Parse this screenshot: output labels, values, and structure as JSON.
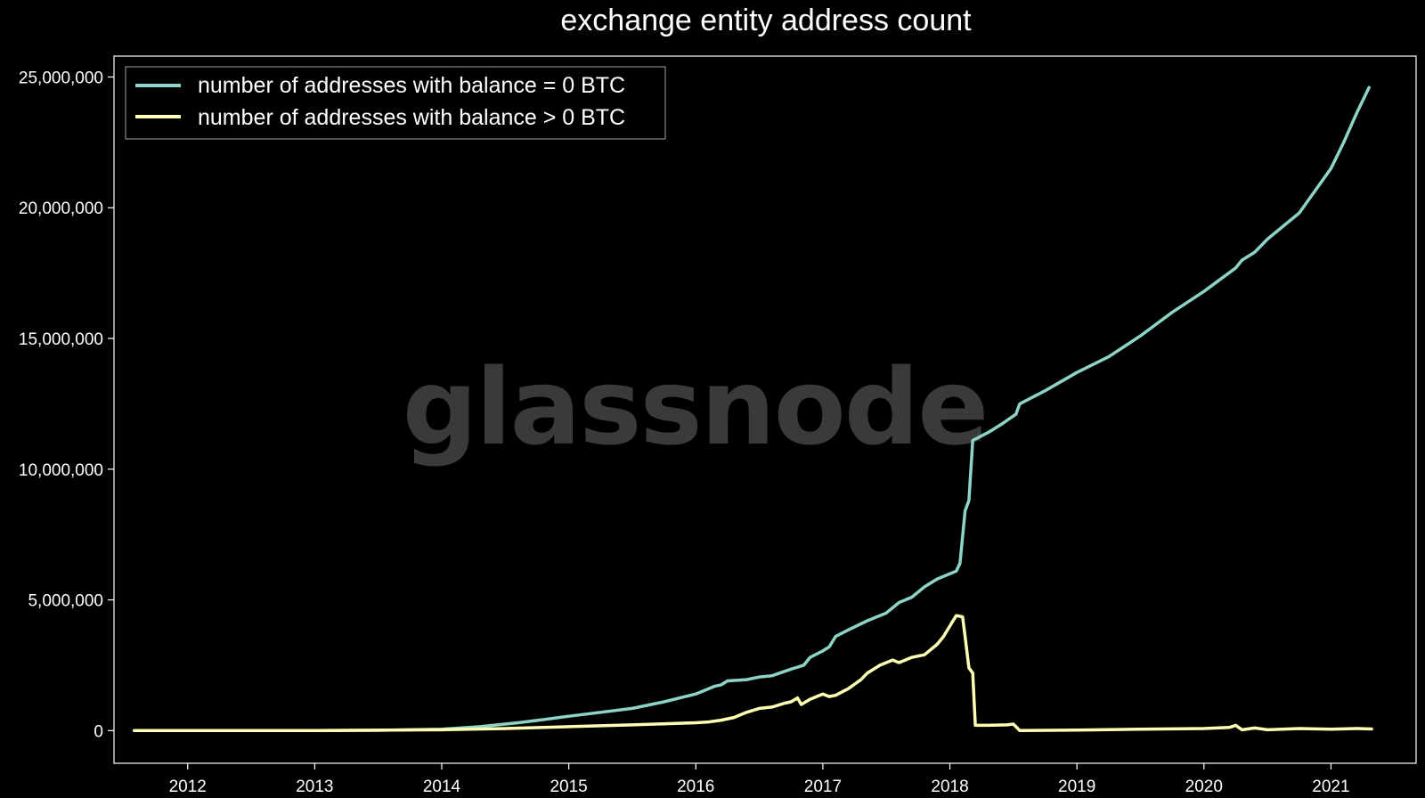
{
  "chart_data": {
    "type": "line",
    "title": "exchange entity address count",
    "xlabel": "",
    "ylabel": "",
    "xlim": [
      2011.42,
      2021.67
    ],
    "ylim": [
      -1250000,
      25800000
    ],
    "y_ticks": [
      {
        "value": 0,
        "label": "0"
      },
      {
        "value": 5000000,
        "label": "5,000,000"
      },
      {
        "value": 10000000,
        "label": "10,000,000"
      },
      {
        "value": 15000000,
        "label": "15,000,000"
      },
      {
        "value": 20000000,
        "label": "20,000,000"
      },
      {
        "value": 25000000,
        "label": "25,000,000"
      }
    ],
    "x_ticks": [
      {
        "value": 2012,
        "label": "2012"
      },
      {
        "value": 2013,
        "label": "2013"
      },
      {
        "value": 2014,
        "label": "2014"
      },
      {
        "value": 2015,
        "label": "2015"
      },
      {
        "value": 2016,
        "label": "2016"
      },
      {
        "value": 2017,
        "label": "2017"
      },
      {
        "value": 2018,
        "label": "2018"
      },
      {
        "value": 2019,
        "label": "2019"
      },
      {
        "value": 2020,
        "label": "2020"
      },
      {
        "value": 2021,
        "label": "2021"
      }
    ],
    "grid": false,
    "legend_position": "top-left",
    "background": "#000000",
    "series": [
      {
        "name": "number of addresses with balance = 0 BTC",
        "color": "#8dd3c7",
        "points": [
          [
            2011.58,
            0
          ],
          [
            2012.0,
            0
          ],
          [
            2013.0,
            0
          ],
          [
            2013.5,
            10000
          ],
          [
            2014.0,
            50000
          ],
          [
            2014.3,
            150000
          ],
          [
            2014.6,
            300000
          ],
          [
            2014.8,
            420000
          ],
          [
            2015.0,
            550000
          ],
          [
            2015.25,
            700000
          ],
          [
            2015.5,
            850000
          ],
          [
            2015.75,
            1100000
          ],
          [
            2016.0,
            1400000
          ],
          [
            2016.15,
            1700000
          ],
          [
            2016.2,
            1750000
          ],
          [
            2016.25,
            1900000
          ],
          [
            2016.4,
            1950000
          ],
          [
            2016.5,
            2050000
          ],
          [
            2016.6,
            2100000
          ],
          [
            2016.75,
            2350000
          ],
          [
            2016.85,
            2500000
          ],
          [
            2016.9,
            2800000
          ],
          [
            2017.0,
            3050000
          ],
          [
            2017.05,
            3200000
          ],
          [
            2017.1,
            3600000
          ],
          [
            2017.2,
            3850000
          ],
          [
            2017.35,
            4200000
          ],
          [
            2017.5,
            4500000
          ],
          [
            2017.6,
            4900000
          ],
          [
            2017.7,
            5100000
          ],
          [
            2017.8,
            5500000
          ],
          [
            2017.9,
            5800000
          ],
          [
            2018.0,
            6000000
          ],
          [
            2018.05,
            6100000
          ],
          [
            2018.08,
            6400000
          ],
          [
            2018.12,
            8400000
          ],
          [
            2018.15,
            8800000
          ],
          [
            2018.18,
            11100000
          ],
          [
            2018.3,
            11400000
          ],
          [
            2018.4,
            11700000
          ],
          [
            2018.52,
            12100000
          ],
          [
            2018.55,
            12500000
          ],
          [
            2018.75,
            13000000
          ],
          [
            2019.0,
            13700000
          ],
          [
            2019.25,
            14300000
          ],
          [
            2019.5,
            15100000
          ],
          [
            2019.75,
            16000000
          ],
          [
            2020.0,
            16800000
          ],
          [
            2020.25,
            17700000
          ],
          [
            2020.3,
            18000000
          ],
          [
            2020.4,
            18300000
          ],
          [
            2020.5,
            18800000
          ],
          [
            2020.75,
            19800000
          ],
          [
            2021.0,
            21500000
          ],
          [
            2021.1,
            22500000
          ],
          [
            2021.2,
            23600000
          ],
          [
            2021.3,
            24600000
          ]
        ]
      },
      {
        "name": "number of addresses with balance > 0 BTC",
        "color": "#ffffb3",
        "points": [
          [
            2011.58,
            0
          ],
          [
            2012.0,
            0
          ],
          [
            2013.0,
            0
          ],
          [
            2014.0,
            30000
          ],
          [
            2014.5,
            80000
          ],
          [
            2015.0,
            150000
          ],
          [
            2015.5,
            220000
          ],
          [
            2016.0,
            300000
          ],
          [
            2016.1,
            330000
          ],
          [
            2016.2,
            400000
          ],
          [
            2016.3,
            500000
          ],
          [
            2016.4,
            700000
          ],
          [
            2016.5,
            850000
          ],
          [
            2016.6,
            900000
          ],
          [
            2016.7,
            1050000
          ],
          [
            2016.75,
            1100000
          ],
          [
            2016.8,
            1250000
          ],
          [
            2016.83,
            1000000
          ],
          [
            2016.9,
            1200000
          ],
          [
            2017.0,
            1400000
          ],
          [
            2017.05,
            1300000
          ],
          [
            2017.1,
            1350000
          ],
          [
            2017.2,
            1600000
          ],
          [
            2017.3,
            1950000
          ],
          [
            2017.35,
            2200000
          ],
          [
            2017.45,
            2500000
          ],
          [
            2017.55,
            2700000
          ],
          [
            2017.6,
            2600000
          ],
          [
            2017.7,
            2800000
          ],
          [
            2017.8,
            2900000
          ],
          [
            2017.9,
            3300000
          ],
          [
            2017.95,
            3600000
          ],
          [
            2018.0,
            4000000
          ],
          [
            2018.05,
            4400000
          ],
          [
            2018.1,
            4350000
          ],
          [
            2018.12,
            3600000
          ],
          [
            2018.15,
            2400000
          ],
          [
            2018.18,
            2200000
          ],
          [
            2018.2,
            200000
          ],
          [
            2018.3,
            200000
          ],
          [
            2018.45,
            220000
          ],
          [
            2018.5,
            250000
          ],
          [
            2018.55,
            0
          ],
          [
            2019.0,
            20000
          ],
          [
            2019.5,
            50000
          ],
          [
            2020.0,
            80000
          ],
          [
            2020.2,
            120000
          ],
          [
            2020.25,
            200000
          ],
          [
            2020.3,
            30000
          ],
          [
            2020.4,
            100000
          ],
          [
            2020.5,
            30000
          ],
          [
            2020.75,
            80000
          ],
          [
            2021.0,
            50000
          ],
          [
            2021.2,
            80000
          ],
          [
            2021.32,
            60000
          ]
        ]
      }
    ]
  },
  "watermark": "glassnode"
}
